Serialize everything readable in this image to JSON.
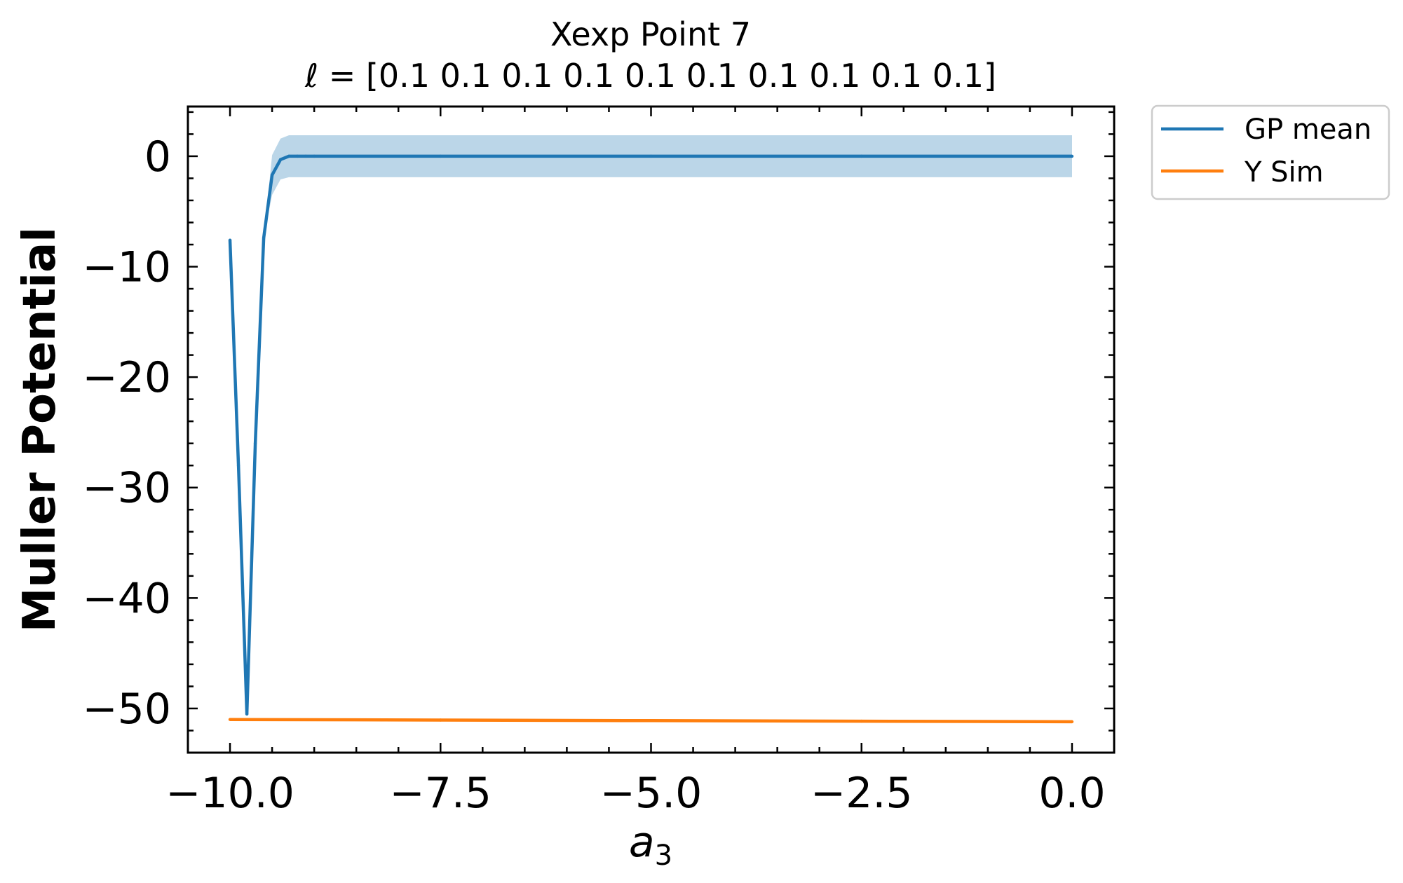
{
  "chart_data": {
    "type": "line",
    "title": "Xexp Point 7",
    "subtitle": "ℓ = [0.1 0.1 0.1 0.1 0.1 0.1 0.1 0.1 0.1 0.1]",
    "xlabel": "a",
    "xlabel_subscript": "3",
    "ylabel": "Muller Potential",
    "xlim": [
      -10.5,
      0.5
    ],
    "ylim": [
      -54,
      4.5
    ],
    "grid": false,
    "legend_position": "outside-top-right",
    "x_ticks": [
      {
        "value": -10.0,
        "label": "−10.0"
      },
      {
        "value": -7.5,
        "label": "−7.5"
      },
      {
        "value": -5.0,
        "label": "−5.0"
      },
      {
        "value": -2.5,
        "label": "−2.5"
      },
      {
        "value": 0.0,
        "label": "0.0"
      }
    ],
    "y_ticks": [
      {
        "value": 0,
        "label": "0"
      },
      {
        "value": -10,
        "label": "−10"
      },
      {
        "value": -20,
        "label": "−20"
      },
      {
        "value": -30,
        "label": "−30"
      },
      {
        "value": -40,
        "label": "−40"
      },
      {
        "value": -50,
        "label": "−50"
      }
    ],
    "series": [
      {
        "name": "GP mean",
        "color": "#1f77b4",
        "band_color": "#1f77b4",
        "band_opacity": 0.3,
        "x": [
          -10.0,
          -9.9,
          -9.8,
          -9.7,
          -9.6,
          -9.5,
          -9.4,
          -9.3,
          -9.2,
          -9.1,
          -9.0,
          -7.5,
          -5.0,
          -2.5,
          0.0
        ],
        "y": [
          -7.6,
          -28.0,
          -50.5,
          -26.0,
          -7.4,
          -1.7,
          -0.3,
          0.0,
          0.0,
          0.0,
          0.0,
          0.0,
          0.0,
          0.0,
          0.0
        ],
        "lower": [
          -6.0,
          -28.0,
          -50.5,
          -26.0,
          -7.4,
          -3.5,
          -2.1,
          -1.9,
          -1.9,
          -1.9,
          -1.9,
          -1.9,
          -1.9,
          -1.9,
          -1.9
        ],
        "upper": [
          -6.0,
          -28.0,
          -50.5,
          -26.0,
          -7.4,
          0.1,
          1.6,
          1.9,
          1.9,
          1.9,
          1.9,
          1.9,
          1.9,
          1.9,
          1.9
        ]
      },
      {
        "name": "Y Sim",
        "color": "#ff7f0e",
        "x": [
          -10.0,
          -7.5,
          -5.0,
          -2.5,
          0.0
        ],
        "y": [
          -51.0,
          -51.05,
          -51.1,
          -51.15,
          -51.2
        ]
      }
    ]
  }
}
